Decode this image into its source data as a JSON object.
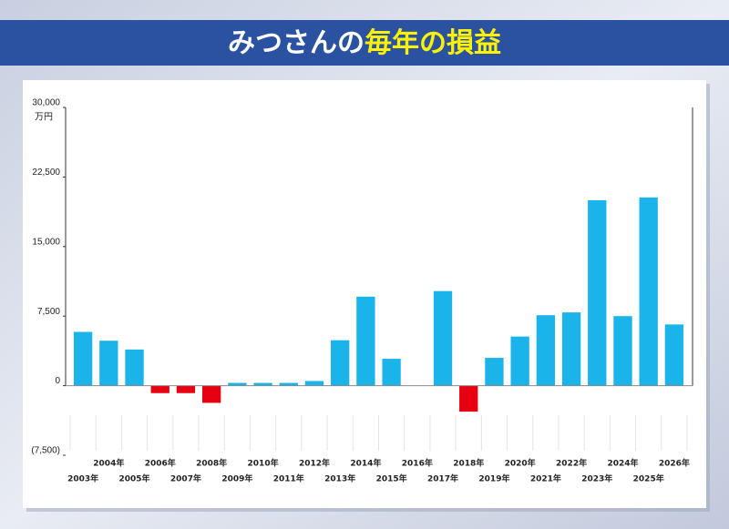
{
  "chart_data": {
    "type": "bar",
    "title": "みつさんの",
    "title_highlight": "毎年の損益",
    "y_unit": "万円",
    "categories": [
      "2003年",
      "2004年",
      "2005年",
      "2006年",
      "2007年",
      "2008年",
      "2009年",
      "2010年",
      "2011年",
      "2012年",
      "2013年",
      "2014年",
      "2015年",
      "2016年",
      "2017年",
      "2018年",
      "2019年",
      "2020年",
      "2021年",
      "2022年",
      "2023年",
      "2024年",
      "2025年",
      "2026年"
    ],
    "values": [
      5800,
      4850,
      3900,
      -800,
      -800,
      -1850,
      300,
      300,
      300,
      500,
      4900,
      9600,
      2900,
      0,
      10200,
      -2800,
      3000,
      5300,
      7600,
      7900,
      20000,
      7500,
      20300,
      6600
    ],
    "color": "#1ab3ea",
    "negative_color": "#e60012",
    "ylim": [
      -7500,
      30000
    ],
    "yticks": [
      {
        "value": -7500,
        "label": "(7,500)"
      },
      0,
      {
        "value": 7500,
        "label": "7,500"
      },
      {
        "value": 15000,
        "label": "15,000"
      },
      {
        "value": 22500,
        "label": "22,500"
      },
      {
        "value": 30000,
        "label": "30,000"
      }
    ],
    "grid": false
  }
}
